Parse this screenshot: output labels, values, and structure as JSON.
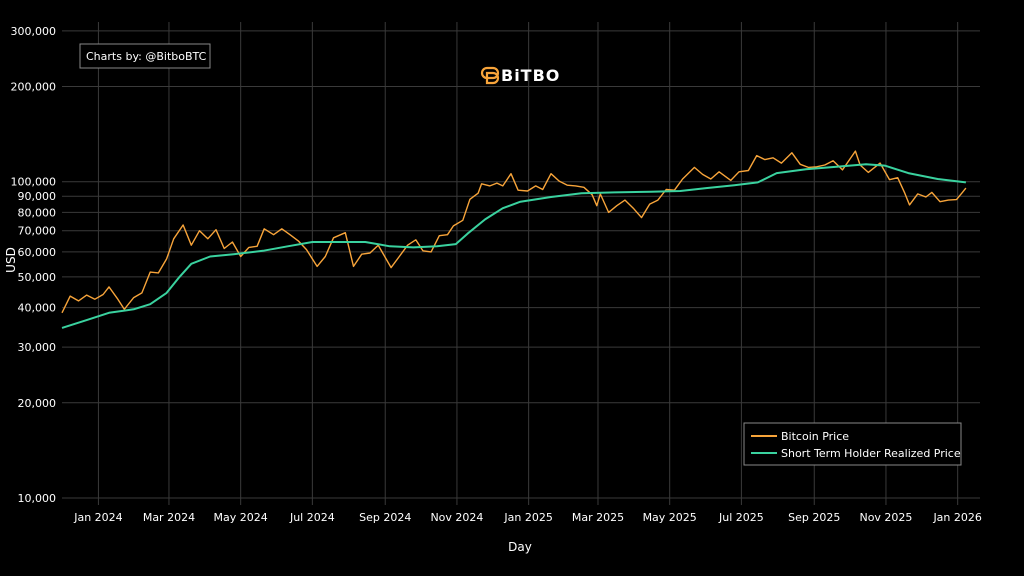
{
  "credit": "Charts by: @BitboBTC",
  "brand": {
    "name": "BiTBO"
  },
  "chart_data": {
    "type": "line",
    "xlabel": "Day",
    "ylabel": "USD",
    "y_scale": "log",
    "ylim": [
      9500,
      320000
    ],
    "xlim": [
      "2023-12-01",
      "2026-01-20"
    ],
    "grid": true,
    "legend_position": "bottom-right",
    "x_ticks": [
      {
        "date": "2024-01-01",
        "label": "Jan 2024"
      },
      {
        "date": "2024-03-01",
        "label": "Mar 2024"
      },
      {
        "date": "2024-05-01",
        "label": "May 2024"
      },
      {
        "date": "2024-07-01",
        "label": "Jul 2024"
      },
      {
        "date": "2024-09-01",
        "label": "Sep 2024"
      },
      {
        "date": "2024-11-01",
        "label": "Nov 2024"
      },
      {
        "date": "2025-01-01",
        "label": "Jan 2025"
      },
      {
        "date": "2025-03-01",
        "label": "Mar 2025"
      },
      {
        "date": "2025-05-01",
        "label": "May 2025"
      },
      {
        "date": "2025-07-01",
        "label": "Jul 2025"
      },
      {
        "date": "2025-09-01",
        "label": "Sep 2025"
      },
      {
        "date": "2025-11-01",
        "label": "Nov 2025"
      },
      {
        "date": "2026-01-01",
        "label": "Jan 2026"
      }
    ],
    "y_ticks": [
      {
        "value": 10000,
        "label": "10,000"
      },
      {
        "value": 20000,
        "label": "20,000"
      },
      {
        "value": 30000,
        "label": "30,000"
      },
      {
        "value": 40000,
        "label": "40,000"
      },
      {
        "value": 50000,
        "label": "50,000"
      },
      {
        "value": 60000,
        "label": "60,000"
      },
      {
        "value": 70000,
        "label": "70,000"
      },
      {
        "value": 80000,
        "label": "80,000"
      },
      {
        "value": 90000,
        "label": "90,000"
      },
      {
        "value": 100000,
        "label": "100,000"
      },
      {
        "value": 200000,
        "label": "200,000"
      },
      {
        "value": 300000,
        "label": "300,000"
      }
    ],
    "series": [
      {
        "name": "Bitcoin Price",
        "color": "#f7a43a",
        "points": [
          [
            "2023-12-01",
            38500
          ],
          [
            "2023-12-08",
            43500
          ],
          [
            "2023-12-15",
            42000
          ],
          [
            "2023-12-22",
            43800
          ],
          [
            "2023-12-29",
            42500
          ],
          [
            "2024-01-05",
            44000
          ],
          [
            "2024-01-10",
            46500
          ],
          [
            "2024-01-17",
            42800
          ],
          [
            "2024-01-23",
            39500
          ],
          [
            "2024-01-31",
            43000
          ],
          [
            "2024-02-07",
            44500
          ],
          [
            "2024-02-14",
            51800
          ],
          [
            "2024-02-21",
            51500
          ],
          [
            "2024-02-28",
            57000
          ],
          [
            "2024-03-05",
            66000
          ],
          [
            "2024-03-13",
            73000
          ],
          [
            "2024-03-20",
            63000
          ],
          [
            "2024-03-27",
            70000
          ],
          [
            "2024-04-03",
            66000
          ],
          [
            "2024-04-10",
            70500
          ],
          [
            "2024-04-17",
            61500
          ],
          [
            "2024-04-24",
            64500
          ],
          [
            "2024-05-01",
            58000
          ],
          [
            "2024-05-08",
            62000
          ],
          [
            "2024-05-15",
            62500
          ],
          [
            "2024-05-21",
            71000
          ],
          [
            "2024-05-29",
            68000
          ],
          [
            "2024-06-05",
            71000
          ],
          [
            "2024-06-12",
            68000
          ],
          [
            "2024-06-19",
            65000
          ],
          [
            "2024-06-26",
            61000
          ],
          [
            "2024-07-05",
            54000
          ],
          [
            "2024-07-12",
            58000
          ],
          [
            "2024-07-19",
            66500
          ],
          [
            "2024-07-29",
            69000
          ],
          [
            "2024-08-05",
            54000
          ],
          [
            "2024-08-12",
            59000
          ],
          [
            "2024-08-19",
            59500
          ],
          [
            "2024-08-26",
            63000
          ],
          [
            "2024-09-06",
            53500
          ],
          [
            "2024-09-13",
            58000
          ],
          [
            "2024-09-20",
            63000
          ],
          [
            "2024-09-27",
            65500
          ],
          [
            "2024-10-03",
            60500
          ],
          [
            "2024-10-10",
            60000
          ],
          [
            "2024-10-17",
            67500
          ],
          [
            "2024-10-24",
            68000
          ],
          [
            "2024-10-29",
            72500
          ],
          [
            "2024-11-06",
            75500
          ],
          [
            "2024-11-12",
            88000
          ],
          [
            "2024-11-19",
            92000
          ],
          [
            "2024-11-22",
            98500
          ],
          [
            "2024-11-29",
            97000
          ],
          [
            "2024-12-05",
            99000
          ],
          [
            "2024-12-10",
            97000
          ],
          [
            "2024-12-17",
            106000
          ],
          [
            "2024-12-23",
            94000
          ],
          [
            "2024-12-31",
            93500
          ],
          [
            "2025-01-07",
            97000
          ],
          [
            "2025-01-13",
            94500
          ],
          [
            "2025-01-20",
            106000
          ],
          [
            "2025-01-27",
            100500
          ],
          [
            "2025-02-03",
            97500
          ],
          [
            "2025-02-10",
            97000
          ],
          [
            "2025-02-17",
            96000
          ],
          [
            "2025-02-24",
            91000
          ],
          [
            "2025-02-28",
            84000
          ],
          [
            "2025-03-03",
            91500
          ],
          [
            "2025-03-10",
            80000
          ],
          [
            "2025-03-17",
            84000
          ],
          [
            "2025-03-24",
            87500
          ],
          [
            "2025-03-31",
            82500
          ],
          [
            "2025-04-07",
            77000
          ],
          [
            "2025-04-14",
            85000
          ],
          [
            "2025-04-21",
            87500
          ],
          [
            "2025-04-28",
            94500
          ],
          [
            "2025-05-05",
            94000
          ],
          [
            "2025-05-12",
            102000
          ],
          [
            "2025-05-22",
            111000
          ],
          [
            "2025-05-29",
            105500
          ],
          [
            "2025-06-05",
            102000
          ],
          [
            "2025-06-12",
            107500
          ],
          [
            "2025-06-22",
            101000
          ],
          [
            "2025-06-29",
            107500
          ],
          [
            "2025-07-07",
            108500
          ],
          [
            "2025-07-14",
            121000
          ],
          [
            "2025-07-21",
            117500
          ],
          [
            "2025-07-28",
            119000
          ],
          [
            "2025-08-04",
            114500
          ],
          [
            "2025-08-13",
            123500
          ],
          [
            "2025-08-20",
            113500
          ],
          [
            "2025-08-27",
            111000
          ],
          [
            "2025-09-03",
            111500
          ],
          [
            "2025-09-10",
            113000
          ],
          [
            "2025-09-17",
            116500
          ],
          [
            "2025-09-25",
            109000
          ],
          [
            "2025-10-06",
            125000
          ],
          [
            "2025-10-10",
            113000
          ],
          [
            "2025-10-17",
            107000
          ],
          [
            "2025-10-27",
            114500
          ],
          [
            "2025-11-04",
            101500
          ],
          [
            "2025-11-11",
            103000
          ],
          [
            "2025-11-17",
            92000
          ],
          [
            "2025-11-21",
            84500
          ],
          [
            "2025-11-28",
            91500
          ],
          [
            "2025-12-05",
            89500
          ],
          [
            "2025-12-10",
            92500
          ],
          [
            "2025-12-17",
            86500
          ],
          [
            "2025-12-24",
            87500
          ],
          [
            "2025-12-31",
            87800
          ],
          [
            "2026-01-05",
            92500
          ],
          [
            "2026-01-08",
            95500
          ]
        ]
      },
      {
        "name": "Short Term Holder Realized Price",
        "color": "#3ad29f",
        "points": [
          [
            "2023-12-01",
            34500
          ],
          [
            "2023-12-22",
            36500
          ],
          [
            "2024-01-10",
            38500
          ],
          [
            "2024-01-31",
            39500
          ],
          [
            "2024-02-14",
            41000
          ],
          [
            "2024-02-28",
            44500
          ],
          [
            "2024-03-10",
            50000
          ],
          [
            "2024-03-20",
            55000
          ],
          [
            "2024-04-05",
            58000
          ],
          [
            "2024-04-25",
            59000
          ],
          [
            "2024-05-20",
            60500
          ],
          [
            "2024-06-10",
            62500
          ],
          [
            "2024-07-01",
            64500
          ],
          [
            "2024-07-25",
            64500
          ],
          [
            "2024-08-15",
            64500
          ],
          [
            "2024-09-05",
            62500
          ],
          [
            "2024-09-25",
            62000
          ],
          [
            "2024-10-15",
            62500
          ],
          [
            "2024-10-31",
            63500
          ],
          [
            "2024-11-10",
            68500
          ],
          [
            "2024-11-25",
            76000
          ],
          [
            "2024-12-10",
            82500
          ],
          [
            "2024-12-25",
            86500
          ],
          [
            "2025-01-20",
            89500
          ],
          [
            "2025-02-15",
            92000
          ],
          [
            "2025-03-15",
            92500
          ],
          [
            "2025-04-15",
            93000
          ],
          [
            "2025-05-10",
            93500
          ],
          [
            "2025-06-01",
            95500
          ],
          [
            "2025-06-25",
            97500
          ],
          [
            "2025-07-15",
            99500
          ],
          [
            "2025-07-31",
            106500
          ],
          [
            "2025-08-25",
            109500
          ],
          [
            "2025-09-20",
            111500
          ],
          [
            "2025-10-15",
            113500
          ],
          [
            "2025-10-31",
            112500
          ],
          [
            "2025-11-20",
            106500
          ],
          [
            "2025-12-15",
            102000
          ],
          [
            "2026-01-08",
            99500
          ]
        ]
      }
    ]
  }
}
